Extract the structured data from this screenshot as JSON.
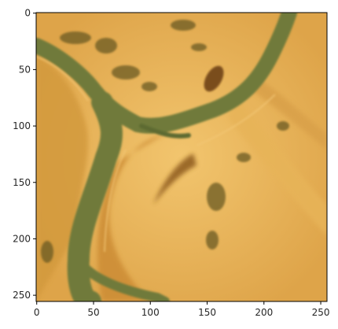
{
  "image": {
    "description_colors": {
      "sand": "#e8b048",
      "sand_light": "#f0c46a",
      "river": "#6f7a3a",
      "river_dark": "#5d6a33",
      "vegetation": "#6a5a22",
      "floodplain": "#c98a36"
    },
    "pixel_grid": {
      "width": 256,
      "height": 256
    }
  },
  "axes": {
    "x_ticks": [
      "0",
      "50",
      "100",
      "150",
      "200",
      "250"
    ],
    "y_ticks": [
      "0",
      "50",
      "100",
      "150",
      "200",
      "250"
    ],
    "x_tick_values": [
      0,
      50,
      100,
      150,
      200,
      250
    ],
    "y_tick_values": [
      0,
      50,
      100,
      150,
      200,
      250
    ],
    "xlim": [
      -0.5,
      255.5
    ],
    "ylim": [
      255.5,
      -0.5
    ]
  }
}
